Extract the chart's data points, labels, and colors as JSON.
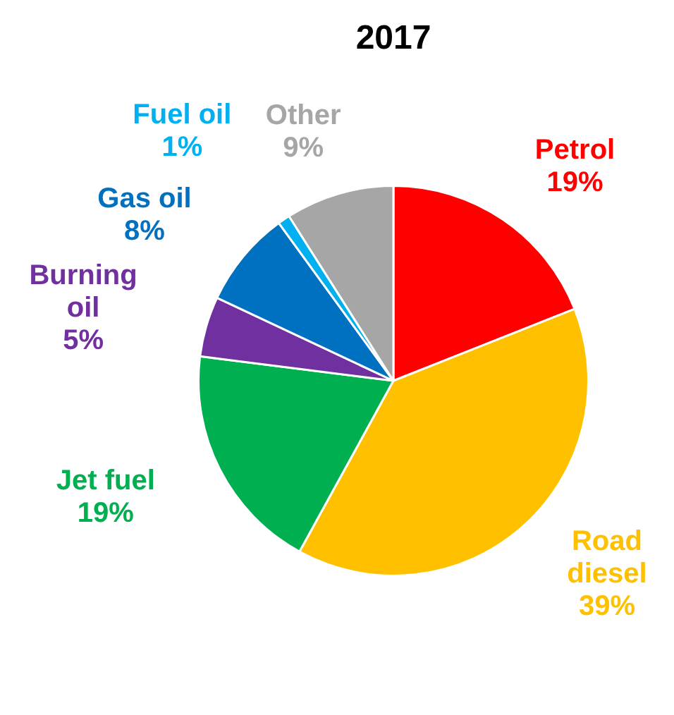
{
  "chart_data": {
    "type": "pie",
    "title": "2017",
    "categories": [
      "Petrol",
      "Road diesel",
      "Jet fuel",
      "Burning oil",
      "Gas oil",
      "Fuel oil",
      "Other"
    ],
    "values": [
      19,
      39,
      19,
      5,
      8,
      1,
      9
    ],
    "colors": [
      "#ff0000",
      "#ffc000",
      "#00b050",
      "#7030a0",
      "#0070c0",
      "#00b0f0",
      "#a6a6a6"
    ],
    "value_labels": [
      "19%",
      "39%",
      "19%",
      "5%",
      "8%",
      "1%",
      "9%"
    ],
    "legend": false
  }
}
